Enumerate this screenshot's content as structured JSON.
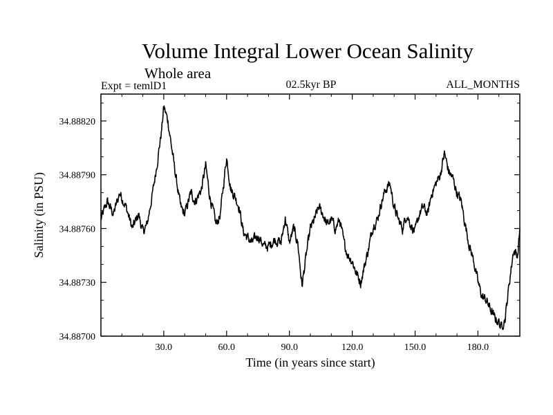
{
  "chart_data": {
    "type": "line",
    "title": "Volume Integral Lower Ocean Salinity",
    "subtitle": "Whole area",
    "expt_label": "Expt = temlD1",
    "period_label": "02.5kyr BP",
    "months_label": "ALL_MONTHS",
    "xlabel": "Time (in years since start)",
    "ylabel": "Salinity (in PSU)",
    "xlim": [
      0,
      200
    ],
    "ylim": [
      34.887,
      34.88835
    ],
    "xticks": [
      30,
      60,
      90,
      120,
      150,
      180
    ],
    "xtick_labels": [
      "30.0",
      "60.0",
      "90.0",
      "120.0",
      "150.0",
      "180.0"
    ],
    "yticks": [
      34.887,
      34.8873,
      34.8876,
      34.8879,
      34.8882
    ],
    "ytick_labels": [
      "34.88700",
      "34.88730",
      "34.88760",
      "34.88790",
      "34.88820"
    ],
    "grid": false,
    "series": [
      {
        "name": "Salinity",
        "x": [
          0,
          3,
          6,
          9,
          12,
          15,
          18,
          20,
          22,
          25,
          27,
          29,
          30,
          32,
          35,
          38,
          40,
          43,
          45,
          48,
          50,
          52,
          55,
          57,
          60,
          62,
          64,
          66,
          68,
          70,
          72,
          75,
          78,
          80,
          83,
          86,
          88,
          90,
          92,
          94,
          96,
          98,
          100,
          102,
          104,
          106,
          108,
          110,
          112,
          114,
          116,
          118,
          120,
          122,
          124,
          126,
          128,
          130,
          132,
          134,
          136,
          138,
          140,
          142,
          144,
          146,
          148,
          150,
          152,
          154,
          156,
          158,
          160,
          162,
          164,
          166,
          168,
          170,
          172,
          174,
          176,
          178,
          180,
          182,
          184,
          186,
          188,
          190,
          191,
          193,
          195,
          197,
          199,
          200
        ],
        "y": [
          34.88765,
          34.88775,
          34.88768,
          34.8878,
          34.88772,
          34.8876,
          34.88768,
          34.88758,
          34.88762,
          34.88782,
          34.88798,
          34.88815,
          34.88828,
          34.8882,
          34.88795,
          34.88772,
          34.88768,
          34.8878,
          34.88775,
          34.88782,
          34.88795,
          34.88778,
          34.88762,
          34.88768,
          34.888,
          34.88782,
          34.88778,
          34.88772,
          34.88758,
          34.88755,
          34.88752,
          34.88756,
          34.8875,
          34.8875,
          34.88754,
          34.88752,
          34.88766,
          34.88752,
          34.8876,
          34.88752,
          34.88728,
          34.88745,
          34.8876,
          34.88765,
          34.88772,
          34.88768,
          34.88762,
          34.88765,
          34.8876,
          34.88765,
          34.88752,
          34.88745,
          34.88742,
          34.88735,
          34.8873,
          34.8874,
          34.8875,
          34.88762,
          34.88765,
          34.88775,
          34.88782,
          34.88785,
          34.88772,
          34.88765,
          34.8876,
          34.88768,
          34.88762,
          34.88758,
          34.88768,
          34.88772,
          34.88768,
          34.8878,
          34.88785,
          34.8879,
          34.88802,
          34.88792,
          34.88788,
          34.8878,
          34.88775,
          34.88762,
          34.8875,
          34.88742,
          34.8873,
          34.88722,
          34.8872,
          34.88715,
          34.8871,
          34.88708,
          34.88705,
          34.8871,
          34.8873,
          34.88748,
          34.88745,
          34.8876
        ]
      }
    ]
  }
}
